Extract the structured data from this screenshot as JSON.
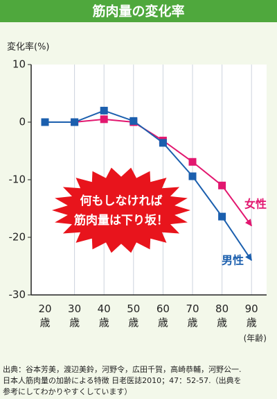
{
  "chart_data": {
    "type": "line",
    "title": "筋肉量の変化率",
    "y_label": "変化率(%)",
    "x_label": "(年齢)",
    "categories": [
      "20歳",
      "30歳",
      "40歳",
      "50歳",
      "60歳",
      "70歳",
      "80歳",
      "90歳"
    ],
    "series": [
      {
        "name": "女性",
        "color": "#e2176f",
        "values": [
          0,
          0,
          0.5,
          0,
          -3.2,
          -6.9,
          -11,
          -18
        ]
      },
      {
        "name": "男性",
        "color": "#1b5fae",
        "values": [
          0,
          0,
          2,
          0.2,
          -3.6,
          -9.4,
          -16.4,
          -24
        ]
      }
    ],
    "ylim": [
      -30,
      10
    ],
    "yticks": [
      10,
      0,
      -10,
      -20,
      -30
    ],
    "grid": true,
    "annotation": [
      "何もしなければ",
      "筋肉量は下り坂！"
    ],
    "source": [
      "出典：谷本芳美，渡辺美鈴，河野令，広田千賀，高崎恭輔，河野公一.",
      "日本人筋肉量の加齢による特徴 日老医誌2010；47：52-57.（出典を",
      "参考にしてわかりやすくしています）"
    ]
  }
}
